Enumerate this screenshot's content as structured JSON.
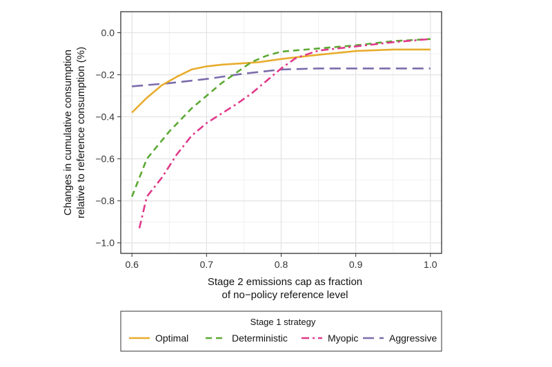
{
  "chart_data": {
    "type": "line",
    "xlabel": [
      "Stage 2 emissions cap as fraction",
      "of no−policy reference level"
    ],
    "ylabel": [
      "Changes in cumulative consumption",
      "relative to reference consumption (%)"
    ],
    "xlim": [
      0.585,
      1.015
    ],
    "ylim": [
      -1.05,
      0.1
    ],
    "x_ticks": [
      0.6,
      0.7,
      0.8,
      0.9,
      1.0
    ],
    "x_tick_labels": [
      "0.6",
      "0.7",
      "0.8",
      "0.9",
      "1.0"
    ],
    "y_ticks": [
      0.0,
      -0.2,
      -0.4,
      -0.6,
      -0.8,
      -1.0
    ],
    "y_tick_labels": [
      "0.0",
      "−0.2",
      "−0.4",
      "−0.6",
      "−0.8",
      "−1.0"
    ],
    "grid": true,
    "legend": {
      "title": "Stage 1 strategy",
      "position": "bottom"
    },
    "series": [
      {
        "name": "Optimal",
        "color": "#E8AC2C",
        "dash": "solid",
        "x": [
          0.6,
          0.62,
          0.64,
          0.66,
          0.68,
          0.7,
          0.72,
          0.75,
          0.77,
          0.8,
          0.85,
          0.9,
          0.95,
          1.0
        ],
        "y": [
          -0.38,
          -0.31,
          -0.25,
          -0.21,
          -0.175,
          -0.16,
          -0.152,
          -0.145,
          -0.14,
          -0.125,
          -0.105,
          -0.087,
          -0.08,
          -0.08
        ]
      },
      {
        "name": "Deterministic",
        "color": "#5BA832",
        "dash": "dashed",
        "x": [
          0.6,
          0.62,
          0.65,
          0.68,
          0.7,
          0.72,
          0.74,
          0.76,
          0.78,
          0.8,
          0.85,
          0.9,
          0.95,
          1.0
        ],
        "y": [
          -0.78,
          -0.6,
          -0.47,
          -0.36,
          -0.3,
          -0.24,
          -0.19,
          -0.14,
          -0.11,
          -0.09,
          -0.075,
          -0.06,
          -0.04,
          -0.03
        ]
      },
      {
        "name": "Myopic",
        "color": "#E0388A",
        "dash": "dashdot",
        "x": [
          0.61,
          0.62,
          0.64,
          0.66,
          0.68,
          0.7,
          0.72,
          0.74,
          0.76,
          0.78,
          0.8,
          0.82,
          0.85,
          0.9,
          0.95,
          1.0
        ],
        "y": [
          -0.93,
          -0.78,
          -0.69,
          -0.58,
          -0.49,
          -0.43,
          -0.385,
          -0.34,
          -0.29,
          -0.23,
          -0.17,
          -0.12,
          -0.085,
          -0.065,
          -0.045,
          -0.03
        ]
      },
      {
        "name": "Aggressive",
        "color": "#7B6BAA",
        "dash": "longdash",
        "x": [
          0.6,
          0.65,
          0.7,
          0.75,
          0.8,
          0.85,
          0.9,
          1.0
        ],
        "y": [
          -0.255,
          -0.24,
          -0.22,
          -0.195,
          -0.175,
          -0.17,
          -0.17,
          -0.17
        ]
      }
    ]
  }
}
